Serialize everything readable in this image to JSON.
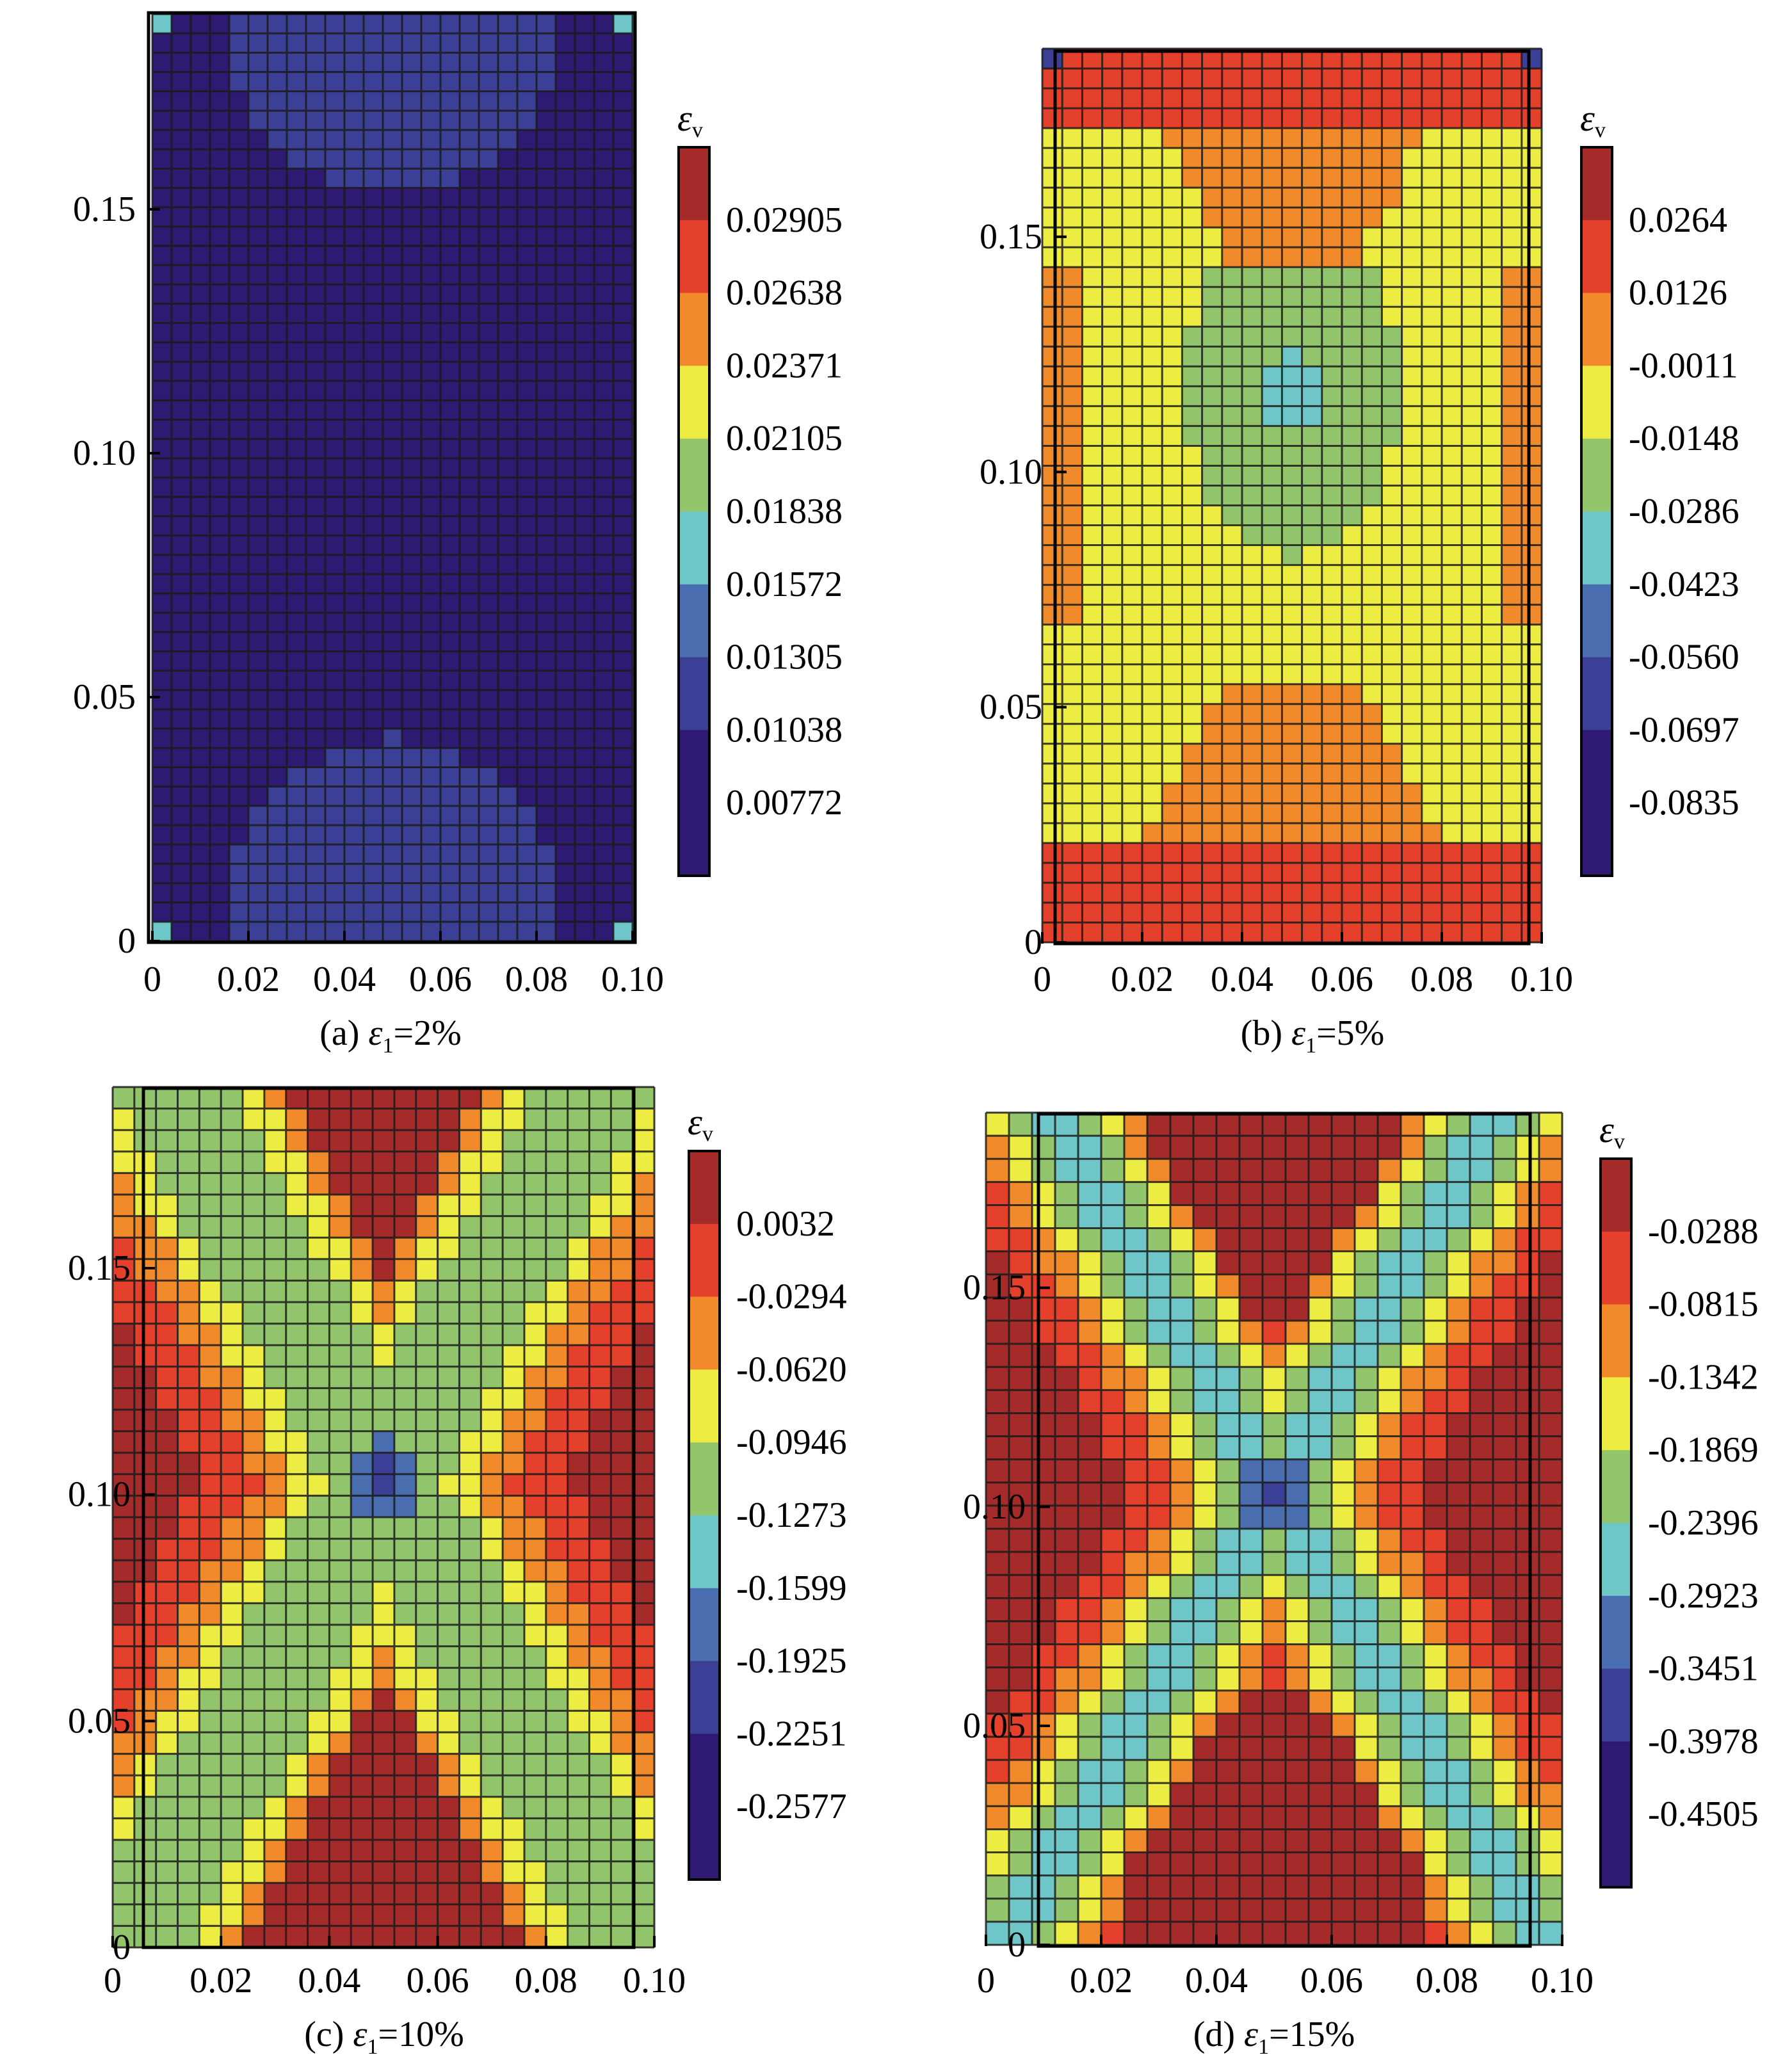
{
  "chart_data": [
    {
      "type": "heatmap",
      "caption_prefix": "(a)",
      "caption_symbol": "ε",
      "caption_subscript": "1",
      "caption_value": "=2%",
      "x_ticks": [
        "0",
        "0.02",
        "0.04",
        "0.06",
        "0.08",
        "0.10"
      ],
      "y_ticks": [
        "0",
        "0.05",
        "0.10",
        "0.15"
      ],
      "xlim": [
        0,
        0.1
      ],
      "ylim": [
        0,
        0.19
      ],
      "colorbar_title_symbol": "ε",
      "colorbar_title_subscript": "v",
      "colorbar_levels": [
        "0.02905",
        "0.02638",
        "0.02371",
        "0.02105",
        "0.01838",
        "0.01572",
        "0.01305",
        "0.01038",
        "0.00772"
      ],
      "colors": [
        "#a52a2a",
        "#e4402b",
        "#f08a2b",
        "#ecec43",
        "#92c56b",
        "#6ec6c9",
        "#4a6db0",
        "#3b3f95",
        "#2e1a72"
      ],
      "pattern": "uniform"
    },
    {
      "type": "heatmap",
      "caption_prefix": "(b)",
      "caption_symbol": "ε",
      "caption_subscript": "1",
      "caption_value": "=5%",
      "x_ticks": [
        "0",
        "0.02",
        "0.04",
        "0.06",
        "0.08",
        "0.10"
      ],
      "y_ticks": [
        "0",
        "0.05",
        "0.10",
        "0.15"
      ],
      "xlim": [
        0,
        0.1
      ],
      "ylim": [
        0,
        0.19
      ],
      "colorbar_title_symbol": "ε",
      "colorbar_title_subscript": "v",
      "colorbar_levels": [
        "0.0264",
        "0.0126",
        "-0.0011",
        "-0.0148",
        "-0.0286",
        "-0.0423",
        "-0.0560",
        "-0.0697",
        "-0.0835"
      ],
      "colors": [
        "#a52a2a",
        "#e4402b",
        "#f08a2b",
        "#ecec43",
        "#92c56b",
        "#6ec6c9",
        "#4a6db0",
        "#3b3f95",
        "#2e1a72"
      ],
      "pattern": "center"
    },
    {
      "type": "heatmap",
      "caption_prefix": "(c)",
      "caption_symbol": "ε",
      "caption_subscript": "1",
      "caption_value": "=10%",
      "x_ticks": [
        "0",
        "0.02",
        "0.04",
        "0.06",
        "0.08",
        "0.10"
      ],
      "y_ticks": [
        "0",
        "0.05",
        "0.10",
        "0.15"
      ],
      "xlim": [
        0,
        0.1
      ],
      "ylim": [
        0,
        0.19
      ],
      "colorbar_title_symbol": "ε",
      "colorbar_title_subscript": "v",
      "colorbar_levels": [
        "0.0032",
        "-0.0294",
        "-0.0620",
        "-0.0946",
        "-0.1273",
        "-0.1599",
        "-0.1925",
        "-0.2251",
        "-0.2577"
      ],
      "colors": [
        "#a52a2a",
        "#e4402b",
        "#f08a2b",
        "#ecec43",
        "#92c56b",
        "#6ec6c9",
        "#4a6db0",
        "#3b3f95",
        "#2e1a72"
      ],
      "pattern": "x-band"
    },
    {
      "type": "heatmap",
      "caption_prefix": "(d)",
      "caption_symbol": "ε",
      "caption_subscript": "1",
      "caption_value": "=15%",
      "x_ticks": [
        "0",
        "0.02",
        "0.04",
        "0.06",
        "0.08",
        "0.10"
      ],
      "y_ticks": [
        "0",
        "0.05",
        "0.10",
        "0.15"
      ],
      "xlim": [
        0,
        0.1
      ],
      "ylim": [
        0,
        0.19
      ],
      "colorbar_title_symbol": "ε",
      "colorbar_title_subscript": "v",
      "colorbar_levels": [
        "-0.0288",
        "-0.0815",
        "-0.1342",
        "-0.1869",
        "-0.2396",
        "-0.2923",
        "-0.3451",
        "-0.3978",
        "-0.4505"
      ],
      "colors": [
        "#a52a2a",
        "#e4402b",
        "#f08a2b",
        "#ecec43",
        "#92c56b",
        "#6ec6c9",
        "#4a6db0",
        "#3b3f95",
        "#2e1a72"
      ],
      "pattern": "x-band-narrow"
    }
  ]
}
